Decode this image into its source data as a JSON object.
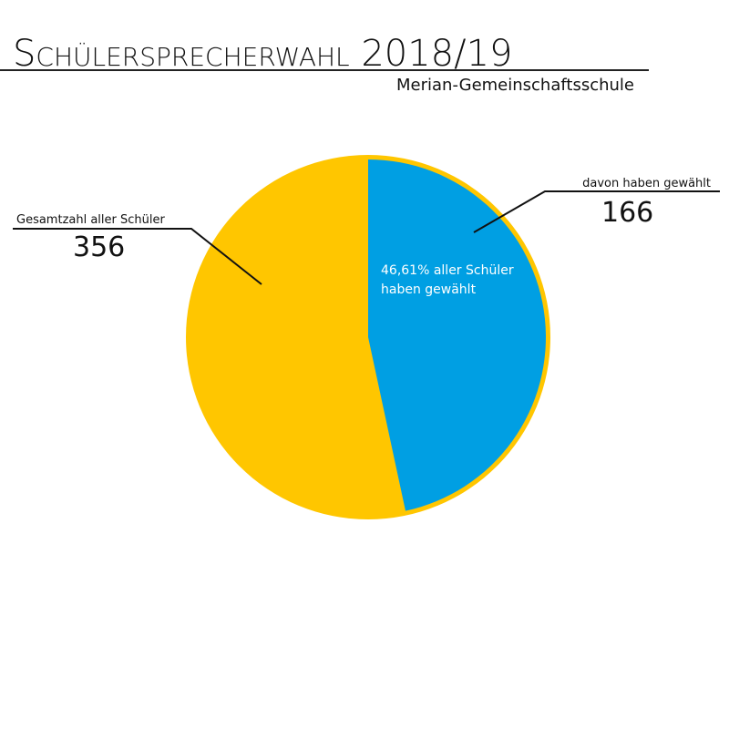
{
  "chart_data": {
    "type": "pie",
    "title": "Schülersprecherwahl 2018/19",
    "subtitle": "Merian-Gemeinschaftsschule",
    "series": [
      {
        "name": "Gesamtzahl aller Schüler",
        "color": "#ffc600",
        "value": 356
      },
      {
        "name": "davon haben gewählt",
        "color": "#009fe3",
        "value": 166
      }
    ],
    "annotation": [
      "46,61% aller Schüler",
      "haben gewählt"
    ]
  }
}
